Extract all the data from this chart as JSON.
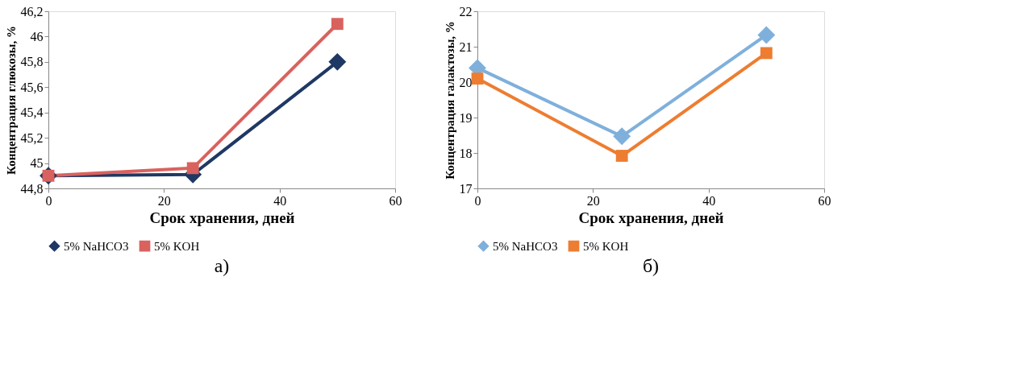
{
  "chart_data": [
    {
      "type": "line",
      "xlabel": "Срок хранения, дней",
      "ylabel": "Концентрация глюкозы, %",
      "x": [
        0,
        25,
        50
      ],
      "series": [
        {
          "name": "5% NaHCO3",
          "color": "#1f3864",
          "marker": "diamond",
          "values": [
            44.9,
            44.91,
            45.8
          ]
        },
        {
          "name": "5% KOH",
          "color": "#d9625e",
          "marker": "square",
          "values": [
            44.9,
            44.96,
            46.1
          ]
        }
      ],
      "xlim": [
        0,
        60
      ],
      "xticks": [
        0,
        20,
        40,
        60
      ],
      "ylim": [
        44.8,
        46.2
      ],
      "yticks": [
        {
          "value": 44.8,
          "label": "44,8"
        },
        {
          "value": 45,
          "label": "45"
        },
        {
          "value": 45.2,
          "label": "45,2"
        },
        {
          "value": 45.4,
          "label": "45,4"
        },
        {
          "value": 45.6,
          "label": "45,6"
        },
        {
          "value": 45.8,
          "label": "45,8"
        },
        {
          "value": 46,
          "label": "46"
        },
        {
          "value": 46.2,
          "label": "46,2"
        }
      ],
      "legend": "bottom",
      "grid": false,
      "annotations": [
        "а)"
      ]
    },
    {
      "type": "line",
      "xlabel": "Срок хранения, дней",
      "ylabel": "Концентрация  галактозы, %",
      "x": [
        0,
        25,
        50
      ],
      "series": [
        {
          "name": "5% NaHCO3",
          "color": "#7fb0dc",
          "marker": "diamond",
          "values": [
            20.4,
            18.47,
            21.33
          ]
        },
        {
          "name": "5% KOH",
          "color": "#ed7d31",
          "marker": "square",
          "values": [
            20.1,
            17.92,
            20.82
          ]
        }
      ],
      "xlim": [
        0,
        60
      ],
      "xticks": [
        0,
        20,
        40,
        60
      ],
      "ylim": [
        17,
        22
      ],
      "yticks": [
        17,
        18,
        19,
        20,
        21,
        22
      ],
      "legend": "bottom",
      "grid": false,
      "annotations": [
        "б)"
      ]
    }
  ]
}
